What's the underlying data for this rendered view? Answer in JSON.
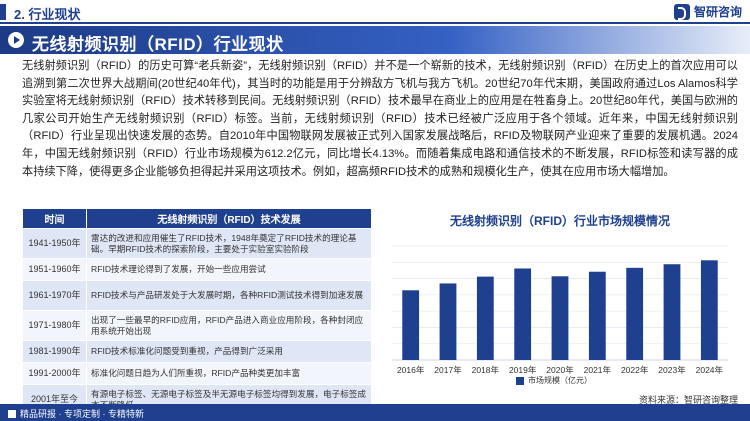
{
  "header": {
    "section": "2. 行业现状",
    "logo_text": "智研咨询"
  },
  "banner": {
    "title": "无线射频识别（RFID）行业现状"
  },
  "intro": "无线射频识别（RFID）的历史可算“老兵新姿”，无线射频识别（RFID）并不是一个崭新的技术，无线射频识别（RFID）在历史上的首次应用可以追溯到第二次世界大战期间(20世纪40年代)，其当时的功能是用于分辨敌方飞机与我方飞机。20世纪70年代末期，美国政府通过Los Alamos科学实验室将无线射频识别（RFID）技术转移到民间。无线射频识别（RFID）技术最早在商业上的应用是在牲畜身上。20世纪80年代，美国与欧洲的几家公司开始生产无线射频识别（RFID）标签。当前，无线射频识别（RFID）技术已经被广泛应用于各个领域。近年来，中国无线射频识别（RFID）行业呈现出快速发展的态势。自2010年中国物联网发展被正式列入国家发展战略后，RFID及物联网产业迎来了重要的发展机遇。2024年，中国无线射频识别（RFID）行业市场规模为612.2亿元，同比增长4.13%。而随着集成电路和通信技术的不断发展，RFID标签和读写器的成本持续下降，使得更多企业能够负担得起并采用这项技术。例如，超高频RFID技术的成熟和规模化生产，使其在应用市场大幅增加。",
  "table": {
    "headers": [
      "时间",
      "无线射频识别（RFID）技术发展"
    ],
    "rows": [
      {
        "period": "1941-1950年",
        "desc": "雷达的改进和应用催生了RFID技术，1948年奠定了RFID技术的理论基础。早期RFID技术的探索阶段，主要处于实验室实验阶段"
      },
      {
        "period": "1951-1960年",
        "desc": "RFID技术理论得到了发展，开始一些应用尝试"
      },
      {
        "period": "1961-1970年",
        "desc": "RFID技术与产品研发处于大发展时期，各种RFID测试技术得到加速发展"
      },
      {
        "period": "1971-1980年",
        "desc": "出现了一些最早的RFID应用，RFID产品进入商业应用阶段，各种封闭应用系统开始出现"
      },
      {
        "period": "1981-1990年",
        "desc": "RFID技术标准化问题受到重视，产品得到广泛采用"
      },
      {
        "period": "1991-2000年",
        "desc": "标准化问题日趋为人们所重视，RFID产品种类更加丰富"
      },
      {
        "period": "2001年至今",
        "desc": "有源电子标签、无源电子标签及半无源电子标签均得到发展，电子标签成本不断降低"
      }
    ]
  },
  "chart_title": "无线射频识别（RFID）行业市场规模情况",
  "chart_data": {
    "type": "bar",
    "categories": [
      "2016年",
      "2017年",
      "2018年",
      "2019年",
      "2020年",
      "2021年",
      "2022年",
      "2023年",
      "2024年"
    ],
    "series": [
      {
        "name": "市场规模（亿元）",
        "values": [
          428,
          470,
          512,
          562,
          514,
          542,
          566,
          588,
          612.2
        ],
        "color": "#1f3f8f"
      }
    ],
    "ylim": [
      0,
      700
    ],
    "grid": true,
    "legend": "bottom-center"
  },
  "source": "资料来源：智研咨询整理",
  "footer": {
    "text": "精品研报 · 专项定制 · 专精特新"
  }
}
